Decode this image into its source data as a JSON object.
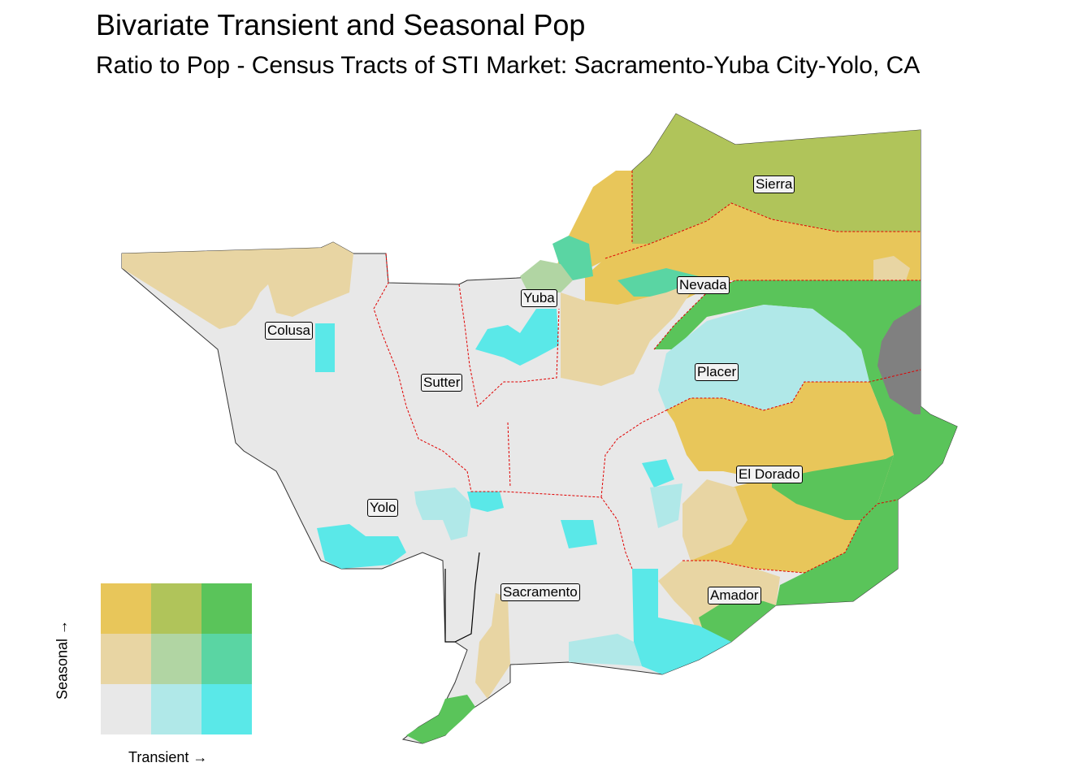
{
  "title": "Bivariate Transient and Seasonal Pop",
  "subtitle": "Ratio to Pop - Census Tracts of STI Market: Sacramento-Yuba City-Yolo, CA",
  "counties": {
    "sierra": "Sierra",
    "nevada": "Nevada",
    "yuba": "Yuba",
    "colusa": "Colusa",
    "sutter": "Sutter",
    "placer": "Placer",
    "el_dorado": "El Dorado",
    "yolo": "Yolo",
    "sacramento": "Sacramento",
    "amador": "Amador"
  },
  "legend": {
    "x_label": "Transient →",
    "y_label": "Seasonal →",
    "colors": [
      [
        "#e8c65a",
        "#b0c45a",
        "#5ac45a"
      ],
      [
        "#e8d5a3",
        "#b1d5a3",
        "#5ad5a3"
      ],
      [
        "#e8e8e8",
        "#b0e8e8",
        "#5ae8e8"
      ]
    ]
  },
  "colors": {
    "low_low": "#e8e8e8",
    "transient_mid": "#b0e8e8",
    "transient_high": "#5ae8e8",
    "seasonal_mid": "#e8d5a3",
    "seasonal_high": "#e8c65a",
    "both_high": "#5ac45a",
    "mixed_mid": "#b0c45a",
    "transient_high_seasonal_mid": "#5ad5a3",
    "no_data": "#808080",
    "county_border": "#e00000"
  }
}
